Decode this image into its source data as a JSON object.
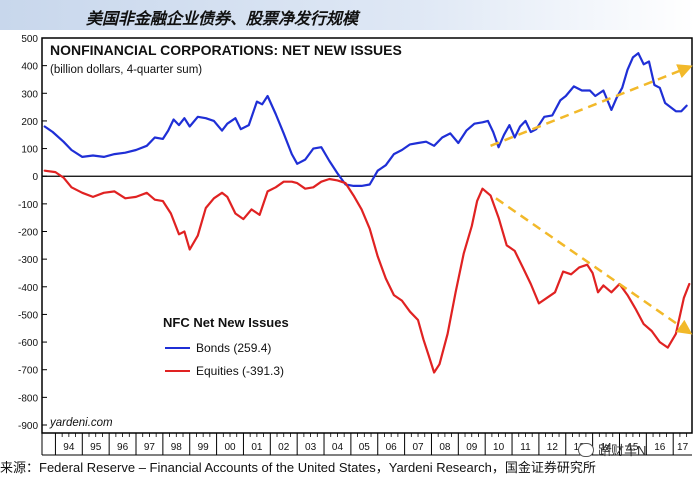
{
  "header": {
    "cn_title": "美国非金融企业债券、股票净发行规模"
  },
  "footer": {
    "source": "来源：Federal Reserve – Financial Accounts of the United States，Yardeni Research，国金证券研究所"
  },
  "watermark": {
    "text": "路财车N"
  },
  "colors": {
    "bonds": "#1f2fd6",
    "equities": "#e02222",
    "trend_arrows": "#f2b92a",
    "frame": "#000000"
  },
  "chart_data": {
    "type": "line",
    "title": "NONFINANCIAL CORPORATIONS: NET NEW ISSUES",
    "subtitle": "(billion dollars, 4-quarter sum)",
    "legend_title": "NFC Net New Issues",
    "legend_placement": "lower-left",
    "credit": "yardeni.com",
    "ylim": [
      -900,
      500
    ],
    "xlim": [
      1993.5,
      2017.7
    ],
    "yticks": [
      500,
      400,
      300,
      200,
      100,
      0,
      -100,
      -200,
      -300,
      -400,
      -500,
      -600,
      -700,
      -800,
      -900
    ],
    "xtick_labels": [
      "94",
      "95",
      "96",
      "97",
      "98",
      "99",
      "00",
      "01",
      "02",
      "03",
      "04",
      "05",
      "06",
      "07",
      "08",
      "09",
      "10",
      "11",
      "12",
      "13",
      "14",
      "15",
      "16",
      "17"
    ],
    "zero_line": true,
    "grid": false,
    "series": [
      {
        "name": "Bonds",
        "legend_label": "Bonds (259.4)",
        "x": [
          1993.6,
          1993.9,
          1994.3,
          1994.6,
          1995.0,
          1995.4,
          1995.8,
          1996.2,
          1996.6,
          1997.0,
          1997.4,
          1997.7,
          1998.0,
          1998.2,
          1998.4,
          1998.6,
          1998.8,
          1999.0,
          1999.3,
          1999.6,
          1999.9,
          2000.2,
          2000.4,
          2000.7,
          2000.9,
          2001.2,
          2001.5,
          2001.7,
          2001.9,
          2002.2,
          2002.5,
          2002.8,
          2003.0,
          2003.3,
          2003.6,
          2003.9,
          2004.2,
          2004.5,
          2004.8,
          2005.1,
          2005.4,
          2005.7,
          2006.0,
          2006.3,
          2006.6,
          2006.9,
          2007.2,
          2007.5,
          2007.8,
          2008.1,
          2008.4,
          2008.7,
          2009.0,
          2009.3,
          2009.6,
          2009.9,
          2010.1,
          2010.3,
          2010.5,
          2010.7,
          2010.9,
          2011.1,
          2011.3,
          2011.5,
          2011.7,
          2011.9,
          2012.2,
          2012.5,
          2012.8,
          2013.0,
          2013.3,
          2013.6,
          2013.9,
          2014.1,
          2014.4,
          2014.7,
          2014.9,
          2015.1,
          2015.3,
          2015.5,
          2015.7,
          2015.9,
          2016.1,
          2016.3,
          2016.5,
          2016.7,
          2016.9,
          2017.1,
          2017.3,
          2017.5
        ],
        "y": [
          180,
          160,
          125,
          95,
          70,
          75,
          70,
          80,
          85,
          95,
          110,
          140,
          135,
          165,
          205,
          185,
          210,
          180,
          215,
          210,
          200,
          165,
          190,
          210,
          170,
          185,
          270,
          260,
          290,
          225,
          155,
          80,
          45,
          60,
          100,
          105,
          55,
          10,
          -30,
          -35,
          -35,
          -30,
          20,
          40,
          80,
          95,
          115,
          120,
          125,
          110,
          140,
          155,
          120,
          165,
          190,
          195,
          200,
          160,
          105,
          150,
          185,
          140,
          180,
          200,
          160,
          170,
          215,
          220,
          275,
          290,
          325,
          310,
          310,
          290,
          310,
          240,
          285,
          320,
          385,
          430,
          445,
          405,
          415,
          330,
          320,
          265,
          250,
          235,
          235,
          255
        ]
      },
      {
        "name": "Equities",
        "legend_label": "Equities (-391.3)",
        "x": [
          1993.6,
          1994.0,
          1994.3,
          1994.6,
          1995.0,
          1995.4,
          1995.8,
          1996.2,
          1996.6,
          1997.0,
          1997.4,
          1997.7,
          1998.0,
          1998.3,
          1998.6,
          1998.8,
          1999.0,
          1999.3,
          1999.6,
          1999.9,
          2000.2,
          2000.4,
          2000.7,
          2001.0,
          2001.3,
          2001.6,
          2001.9,
          2002.2,
          2002.5,
          2002.8,
          2003.0,
          2003.3,
          2003.6,
          2003.9,
          2004.2,
          2004.5,
          2004.8,
          2005.1,
          2005.4,
          2005.7,
          2006.0,
          2006.3,
          2006.6,
          2006.9,
          2007.2,
          2007.5,
          2007.7,
          2007.9,
          2008.1,
          2008.3,
          2008.6,
          2008.9,
          2009.2,
          2009.5,
          2009.7,
          2009.9,
          2010.2,
          2010.5,
          2010.8,
          2011.1,
          2011.4,
          2011.7,
          2012.0,
          2012.3,
          2012.6,
          2012.9,
          2013.2,
          2013.5,
          2013.8,
          2014.0,
          2014.2,
          2014.4,
          2014.7,
          2015.0,
          2015.3,
          2015.6,
          2015.9,
          2016.2,
          2016.5,
          2016.8,
          2017.1,
          2017.4,
          2017.6
        ],
        "y": [
          20,
          15,
          -5,
          -40,
          -60,
          -75,
          -60,
          -55,
          -80,
          -75,
          -60,
          -85,
          -90,
          -135,
          -210,
          -200,
          -265,
          -215,
          -115,
          -80,
          -60,
          -75,
          -135,
          -155,
          -120,
          -140,
          -55,
          -40,
          -20,
          -20,
          -25,
          -45,
          -40,
          -20,
          -10,
          -15,
          -25,
          -70,
          -120,
          -190,
          -290,
          -370,
          -430,
          -450,
          -490,
          -520,
          -590,
          -650,
          -710,
          -680,
          -570,
          -420,
          -280,
          -180,
          -90,
          -45,
          -70,
          -150,
          -250,
          -270,
          -330,
          -390,
          -460,
          -440,
          -420,
          -345,
          -355,
          -330,
          -320,
          -350,
          -420,
          -395,
          -420,
          -390,
          -430,
          -480,
          -535,
          -560,
          -600,
          -620,
          -570,
          -440,
          -390
        ]
      }
    ],
    "trend_arrows": [
      {
        "name": "bonds-trend",
        "from": [
          2010.2,
          110
        ],
        "to": [
          2017.6,
          395
        ]
      },
      {
        "name": "equities-trend",
        "from": [
          2010.4,
          -80
        ],
        "to": [
          2017.6,
          -565
        ]
      }
    ]
  }
}
